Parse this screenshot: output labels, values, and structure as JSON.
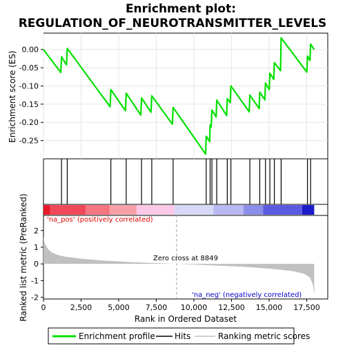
{
  "chart_data": {
    "type": "line",
    "title_line1": "Enrichment plot:",
    "title_line2": "REGULATION_OF_NEUROTRANSMITTER_LEVELS",
    "xlabel": "Rank in Ordered Dataset",
    "ylabel_top": "Enrichment score (ES)",
    "ylabel_bottom": "Ranked list metric (PreRanked)",
    "xlim": [
      0,
      18900
    ],
    "es_ylim": [
      -0.3,
      0.045
    ],
    "metric_ylim": [
      -2.1,
      2.9
    ],
    "x_ticks": [
      0,
      2500,
      5000,
      7500,
      10000,
      12500,
      15000,
      17500
    ],
    "x_tick_labels": [
      "0",
      "2,500",
      "5,000",
      "7,500",
      "10,000",
      "12,500",
      "15,000",
      "17,500"
    ],
    "es_ticks": [
      0.0,
      -0.05,
      -0.1,
      -0.15,
      -0.2,
      -0.25
    ],
    "es_tick_labels": [
      "0.00",
      "-0.05",
      "-0.10",
      "-0.15",
      "-0.20",
      "-0.25"
    ],
    "metric_ticks": [
      2,
      1,
      0,
      -1,
      -2
    ],
    "metric_tick_labels": [
      "2",
      "1",
      "0",
      "-1",
      "-2"
    ],
    "hits": [
      1200,
      1580,
      4480,
      5500,
      6520,
      7200,
      8620,
      10820,
      11080,
      11200,
      11520,
      12220,
      12460,
      13720,
      14380,
      14760,
      15050,
      15350,
      15800,
      17550,
      17760
    ],
    "es_points": [
      [
        0,
        0.0
      ],
      [
        1150,
        -0.063
      ],
      [
        1200,
        -0.02
      ],
      [
        1530,
        -0.042
      ],
      [
        1580,
        0.003
      ],
      [
        4430,
        -0.157
      ],
      [
        4480,
        -0.11
      ],
      [
        5450,
        -0.168
      ],
      [
        5500,
        -0.12
      ],
      [
        6470,
        -0.18
      ],
      [
        6520,
        -0.133
      ],
      [
        7150,
        -0.172
      ],
      [
        7200,
        -0.127
      ],
      [
        8570,
        -0.205
      ],
      [
        8620,
        -0.159
      ],
      [
        10780,
        -0.287
      ],
      [
        10820,
        -0.238
      ],
      [
        11050,
        -0.253
      ],
      [
        11080,
        -0.207
      ],
      [
        11150,
        -0.213
      ],
      [
        11200,
        -0.166
      ],
      [
        11480,
        -0.185
      ],
      [
        11520,
        -0.139
      ],
      [
        12180,
        -0.181
      ],
      [
        12220,
        -0.135
      ],
      [
        12420,
        -0.146
      ],
      [
        12460,
        -0.1
      ],
      [
        13680,
        -0.171
      ],
      [
        13720,
        -0.125
      ],
      [
        14340,
        -0.162
      ],
      [
        14380,
        -0.117
      ],
      [
        14720,
        -0.138
      ],
      [
        14760,
        -0.092
      ],
      [
        15010,
        -0.11
      ],
      [
        15050,
        -0.065
      ],
      [
        15310,
        -0.082
      ],
      [
        15350,
        -0.036
      ],
      [
        15760,
        -0.058
      ],
      [
        15800,
        0.032
      ],
      [
        17510,
        -0.062
      ],
      [
        17550,
        -0.018
      ],
      [
        17720,
        -0.03
      ],
      [
        17760,
        0.015
      ],
      [
        18000,
        0.0
      ]
    ],
    "metric_shape": [
      [
        0,
        1.62
      ],
      [
        100,
        1.2
      ],
      [
        300,
        0.88
      ],
      [
        600,
        0.66
      ],
      [
        1000,
        0.52
      ],
      [
        1500,
        0.42
      ],
      [
        2500,
        0.31
      ],
      [
        4000,
        0.2
      ],
      [
        6000,
        0.1
      ],
      [
        8849,
        0.0
      ],
      [
        11000,
        -0.08
      ],
      [
        13000,
        -0.16
      ],
      [
        15000,
        -0.28
      ],
      [
        16500,
        -0.42
      ],
      [
        17300,
        -0.58
      ],
      [
        17700,
        -0.8
      ],
      [
        17900,
        -1.2
      ],
      [
        18000,
        -1.85
      ]
    ],
    "zero_cross_label": "Zero cross at 8849",
    "zero_cross": 8849,
    "pos_label": "'na_pos' (positively correlated)",
    "neg_label": "'na_neg' (negatively correlated)",
    "heatmap_segments": [
      {
        "from": 0,
        "to": 450,
        "color": "#e8182a"
      },
      {
        "from": 450,
        "to": 2800,
        "color": "#f04858"
      },
      {
        "from": 2800,
        "to": 4400,
        "color": "#f57580"
      },
      {
        "from": 4400,
        "to": 6200,
        "color": "#f8a0a8"
      },
      {
        "from": 6200,
        "to": 8700,
        "color": "#fbc8e8"
      },
      {
        "from": 8700,
        "to": 11300,
        "color": "#d8d8f8"
      },
      {
        "from": 11300,
        "to": 13300,
        "color": "#b8b8f2"
      },
      {
        "from": 13300,
        "to": 14600,
        "color": "#8c8cea"
      },
      {
        "from": 14600,
        "to": 17200,
        "color": "#5a5ae0"
      },
      {
        "from": 17200,
        "to": 18000,
        "color": "#1c1cc8"
      }
    ],
    "legend": [
      {
        "label": "Enrichment profile",
        "kind": "line",
        "color": "#00e000"
      },
      {
        "label": "Hits",
        "kind": "line",
        "color": "#000000"
      },
      {
        "label": "Ranking metric scores",
        "kind": "line",
        "color": "#c0c0c0"
      }
    ],
    "colors": {
      "profile": "#00e000",
      "hits": "#000000",
      "metric": "#c0c0c0",
      "pos_text": "#e00000",
      "neg_text": "#0000cc",
      "zero_line": "#a0a0a0"
    }
  }
}
